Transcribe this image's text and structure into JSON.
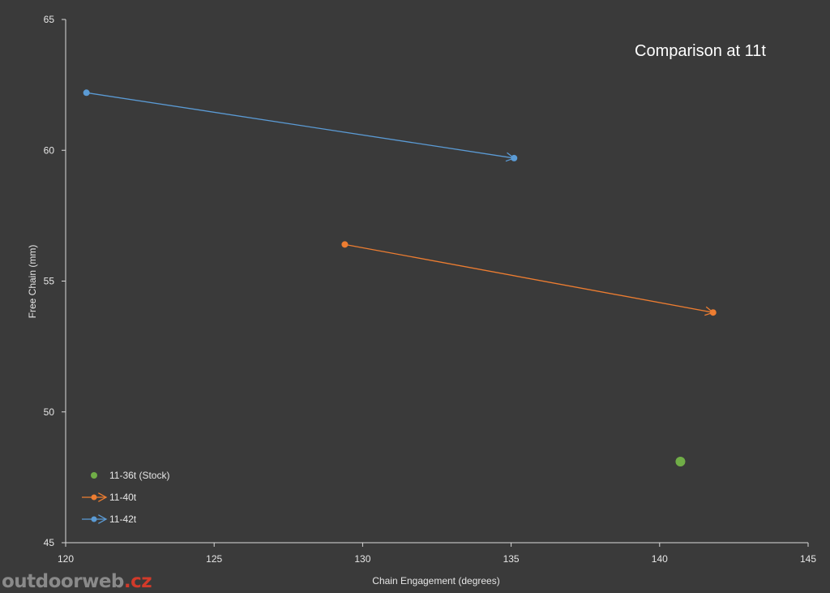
{
  "chart_data": {
    "type": "scatter",
    "title": "Comparison at 11t",
    "xlabel": "Chain Engagement  (degrees)",
    "ylabel": "Free Chain (mm)",
    "xlim": [
      120,
      145
    ],
    "ylim": [
      45,
      65
    ],
    "xticks": [
      120,
      125,
      130,
      135,
      140,
      145
    ],
    "yticks": [
      45,
      50,
      55,
      60,
      65
    ],
    "grid": false,
    "legend": "bottom-left",
    "series": [
      {
        "name": "11-36t (Stock)",
        "color": "#70ad47",
        "style": "point",
        "points": [
          {
            "x": 140.7,
            "y": 48.1
          }
        ]
      },
      {
        "name": "11-40t",
        "color": "#ed7d31",
        "style": "arrow",
        "points": [
          {
            "x": 129.4,
            "y": 56.4
          },
          {
            "x": 141.8,
            "y": 53.8
          }
        ]
      },
      {
        "name": "11-42t",
        "color": "#5b9bd5",
        "style": "arrow",
        "points": [
          {
            "x": 120.7,
            "y": 62.2
          },
          {
            "x": 135.1,
            "y": 59.7
          }
        ]
      }
    ]
  },
  "watermark": {
    "main": "outdoorweb",
    "suffix": ".cz"
  }
}
